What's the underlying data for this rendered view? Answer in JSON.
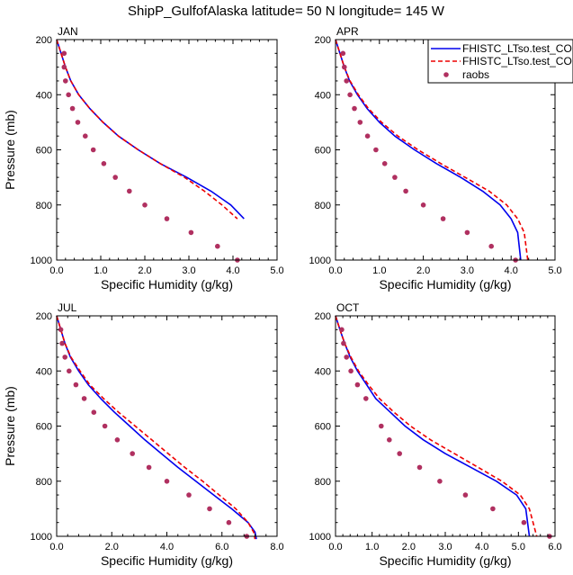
{
  "title": "ShipP_GulfofAlaska  latitude= 50 N longitude= 145 W",
  "legend": {
    "entries": [
      "FHISTC_LTso.test_CO",
      "FHISTC_LTso.test_CO",
      "raobs"
    ]
  },
  "colors": {
    "model_a": "#0000ee",
    "model_b": "#ee0000",
    "raobs": "#b03060"
  },
  "chart_data": [
    {
      "type": "line",
      "panel": "JAN",
      "xlabel": "Specific Humidity (g/kg)",
      "ylabel": "Pressure (mb)",
      "xlim": [
        0,
        5
      ],
      "ylim": [
        1000,
        200
      ],
      "y_inverted": true,
      "xticks": [
        0.0,
        1.0,
        2.0,
        3.0,
        4.0,
        5.0
      ],
      "xticklabels": [
        "0.0",
        "1.0",
        "2.0",
        "3.0",
        "4.0",
        "5.0"
      ],
      "yticks": [
        200,
        400,
        600,
        800,
        1000
      ],
      "yticklabels": [
        "200",
        "400",
        "600",
        "800",
        "1000"
      ],
      "series": [
        {
          "name": "FHISTC_LTso.test_CO",
          "style": "solid",
          "color": "#0000ee",
          "x": [
            0.0,
            0.1,
            0.2,
            0.32,
            0.5,
            0.75,
            1.05,
            1.4,
            1.85,
            2.35,
            2.95,
            3.5,
            3.95,
            4.25
          ],
          "y": [
            200,
            250,
            300,
            350,
            400,
            450,
            500,
            550,
            600,
            650,
            700,
            750,
            800,
            850
          ]
        },
        {
          "name": "FHISTC_LTso.test_CO",
          "style": "dashed",
          "color": "#ee0000",
          "x": [
            0.0,
            0.1,
            0.2,
            0.32,
            0.5,
            0.75,
            1.05,
            1.4,
            1.85,
            2.35,
            2.9,
            3.35,
            3.75,
            4.1
          ],
          "y": [
            200,
            250,
            300,
            350,
            400,
            450,
            500,
            550,
            600,
            650,
            700,
            750,
            800,
            850
          ]
        },
        {
          "name": "raobs",
          "style": "markers",
          "color": "#b03060",
          "x": [
            0.17,
            0.17,
            0.2,
            0.27,
            0.36,
            0.48,
            0.65,
            0.83,
            1.07,
            1.33,
            1.65,
            2.0,
            2.5,
            3.05,
            3.65,
            4.1
          ],
          "y": [
            250,
            300,
            350,
            400,
            450,
            500,
            550,
            600,
            650,
            700,
            750,
            800,
            850,
            900,
            950,
            1000
          ]
        }
      ]
    },
    {
      "type": "line",
      "panel": "APR",
      "xlabel": "Specific Humidity (g/kg)",
      "ylabel": "",
      "xlim": [
        0,
        5
      ],
      "ylim": [
        1000,
        200
      ],
      "y_inverted": true,
      "xticks": [
        0.0,
        1.0,
        2.0,
        3.0,
        4.0,
        5.0
      ],
      "xticklabels": [
        "0.0",
        "1.0",
        "2.0",
        "3.0",
        "4.0",
        "5.0"
      ],
      "yticks": [
        200,
        400,
        600,
        800,
        1000
      ],
      "yticklabels": [
        "200",
        "400",
        "600",
        "800",
        "1000"
      ],
      "series": [
        {
          "name": "FHISTC_LTso.test_CO",
          "style": "solid",
          "color": "#0000ee",
          "x": [
            0.0,
            0.1,
            0.2,
            0.32,
            0.5,
            0.72,
            1.0,
            1.35,
            1.8,
            2.3,
            2.85,
            3.35,
            3.75,
            4.0,
            4.15,
            4.22
          ],
          "y": [
            200,
            250,
            300,
            350,
            400,
            450,
            500,
            550,
            600,
            650,
            700,
            750,
            800,
            850,
            900,
            1000
          ]
        },
        {
          "name": "FHISTC_LTso.test_CO",
          "style": "dashed",
          "color": "#ee0000",
          "x": [
            0.0,
            0.1,
            0.2,
            0.33,
            0.52,
            0.75,
            1.05,
            1.42,
            1.88,
            2.4,
            2.95,
            3.5,
            3.9,
            4.15,
            4.3,
            4.38
          ],
          "y": [
            200,
            250,
            300,
            350,
            400,
            450,
            500,
            550,
            600,
            650,
            700,
            750,
            800,
            850,
            900,
            1000
          ]
        },
        {
          "name": "raobs",
          "style": "markers",
          "color": "#b03060",
          "x": [
            0.17,
            0.2,
            0.25,
            0.33,
            0.43,
            0.56,
            0.73,
            0.92,
            1.12,
            1.35,
            1.6,
            2.0,
            2.45,
            3.0,
            3.55,
            4.1
          ],
          "y": [
            250,
            300,
            350,
            400,
            450,
            500,
            550,
            600,
            650,
            700,
            750,
            800,
            850,
            900,
            950,
            1000
          ]
        }
      ]
    },
    {
      "type": "line",
      "panel": "JUL",
      "xlabel": "Specific Humidity (g/kg)",
      "ylabel": "Pressure (mb)",
      "xlim": [
        0,
        8
      ],
      "ylim": [
        1000,
        200
      ],
      "y_inverted": true,
      "xticks": [
        0.0,
        2.0,
        4.0,
        6.0,
        8.0
      ],
      "xticklabels": [
        "0.0",
        "2.0",
        "4.0",
        "6.0",
        "8.0"
      ],
      "yticks": [
        200,
        400,
        600,
        800,
        1000
      ],
      "yticklabels": [
        "200",
        "400",
        "600",
        "800",
        "1000"
      ],
      "series": [
        {
          "name": "FHISTC_LTso.test_CO",
          "style": "solid",
          "color": "#0000ee",
          "x": [
            0.0,
            0.15,
            0.3,
            0.5,
            0.8,
            1.15,
            1.6,
            2.1,
            2.65,
            3.2,
            3.8,
            4.4,
            5.05,
            5.7,
            6.35,
            6.95,
            7.2,
            7.25
          ],
          "y": [
            200,
            250,
            300,
            350,
            400,
            450,
            500,
            550,
            600,
            650,
            700,
            750,
            800,
            850,
            900,
            950,
            985,
            1010
          ]
        },
        {
          "name": "FHISTC_LTso.test_CO",
          "style": "dashed",
          "color": "#ee0000",
          "x": [
            0.0,
            0.15,
            0.3,
            0.52,
            0.85,
            1.2,
            1.7,
            2.25,
            2.85,
            3.45,
            4.05,
            4.65,
            5.3,
            5.9,
            6.5,
            6.95,
            7.15,
            7.2
          ],
          "y": [
            200,
            250,
            300,
            350,
            400,
            450,
            500,
            550,
            600,
            650,
            700,
            750,
            800,
            850,
            900,
            950,
            985,
            1010
          ]
        },
        {
          "name": "raobs",
          "style": "markers",
          "color": "#b03060",
          "x": [
            0.15,
            0.2,
            0.3,
            0.45,
            0.7,
            1.0,
            1.35,
            1.75,
            2.2,
            2.75,
            3.35,
            4.0,
            4.8,
            5.55,
            6.25,
            6.9
          ],
          "y": [
            250,
            300,
            350,
            400,
            450,
            500,
            550,
            600,
            650,
            700,
            750,
            800,
            850,
            900,
            950,
            1000
          ]
        }
      ]
    },
    {
      "type": "line",
      "panel": "OCT",
      "xlabel": "Specific Humidity (g/kg)",
      "ylabel": "",
      "xlim": [
        0,
        6
      ],
      "ylim": [
        1000,
        200
      ],
      "y_inverted": true,
      "xticks": [
        0.0,
        1.0,
        2.0,
        3.0,
        4.0,
        5.0,
        6.0
      ],
      "xticklabels": [
        "0.0",
        "1.0",
        "2.0",
        "3.0",
        "4.0",
        "5.0",
        "6.0"
      ],
      "yticks": [
        200,
        400,
        600,
        800,
        1000
      ],
      "yticklabels": [
        "200",
        "400",
        "600",
        "800",
        "1000"
      ],
      "series": [
        {
          "name": "FHISTC_LTso.test_CO",
          "style": "solid",
          "color": "#0000ee",
          "x": [
            0.0,
            0.12,
            0.25,
            0.4,
            0.6,
            0.85,
            1.1,
            1.5,
            1.9,
            2.4,
            3.0,
            3.7,
            4.4,
            4.95,
            5.2,
            5.3
          ],
          "y": [
            200,
            250,
            300,
            350,
            400,
            450,
            500,
            550,
            600,
            650,
            700,
            750,
            800,
            850,
            900,
            1000
          ]
        },
        {
          "name": "FHISTC_LTso.test_CO",
          "style": "dashed",
          "color": "#ee0000",
          "x": [
            0.0,
            0.12,
            0.25,
            0.42,
            0.63,
            0.9,
            1.2,
            1.6,
            2.05,
            2.6,
            3.25,
            3.9,
            4.55,
            5.05,
            5.3,
            5.5
          ],
          "y": [
            200,
            250,
            300,
            350,
            400,
            450,
            500,
            550,
            600,
            650,
            700,
            750,
            800,
            850,
            900,
            1000
          ]
        },
        {
          "name": "raobs",
          "style": "markers",
          "color": "#b03060",
          "x": [
            0.17,
            0.22,
            0.3,
            0.42,
            0.6,
            0.83,
            1.25,
            1.47,
            1.75,
            2.3,
            2.85,
            3.55,
            4.3,
            5.15,
            5.85
          ],
          "y": [
            250,
            300,
            350,
            400,
            450,
            500,
            600,
            650,
            700,
            750,
            800,
            850,
            900,
            950,
            1000
          ]
        }
      ]
    }
  ]
}
